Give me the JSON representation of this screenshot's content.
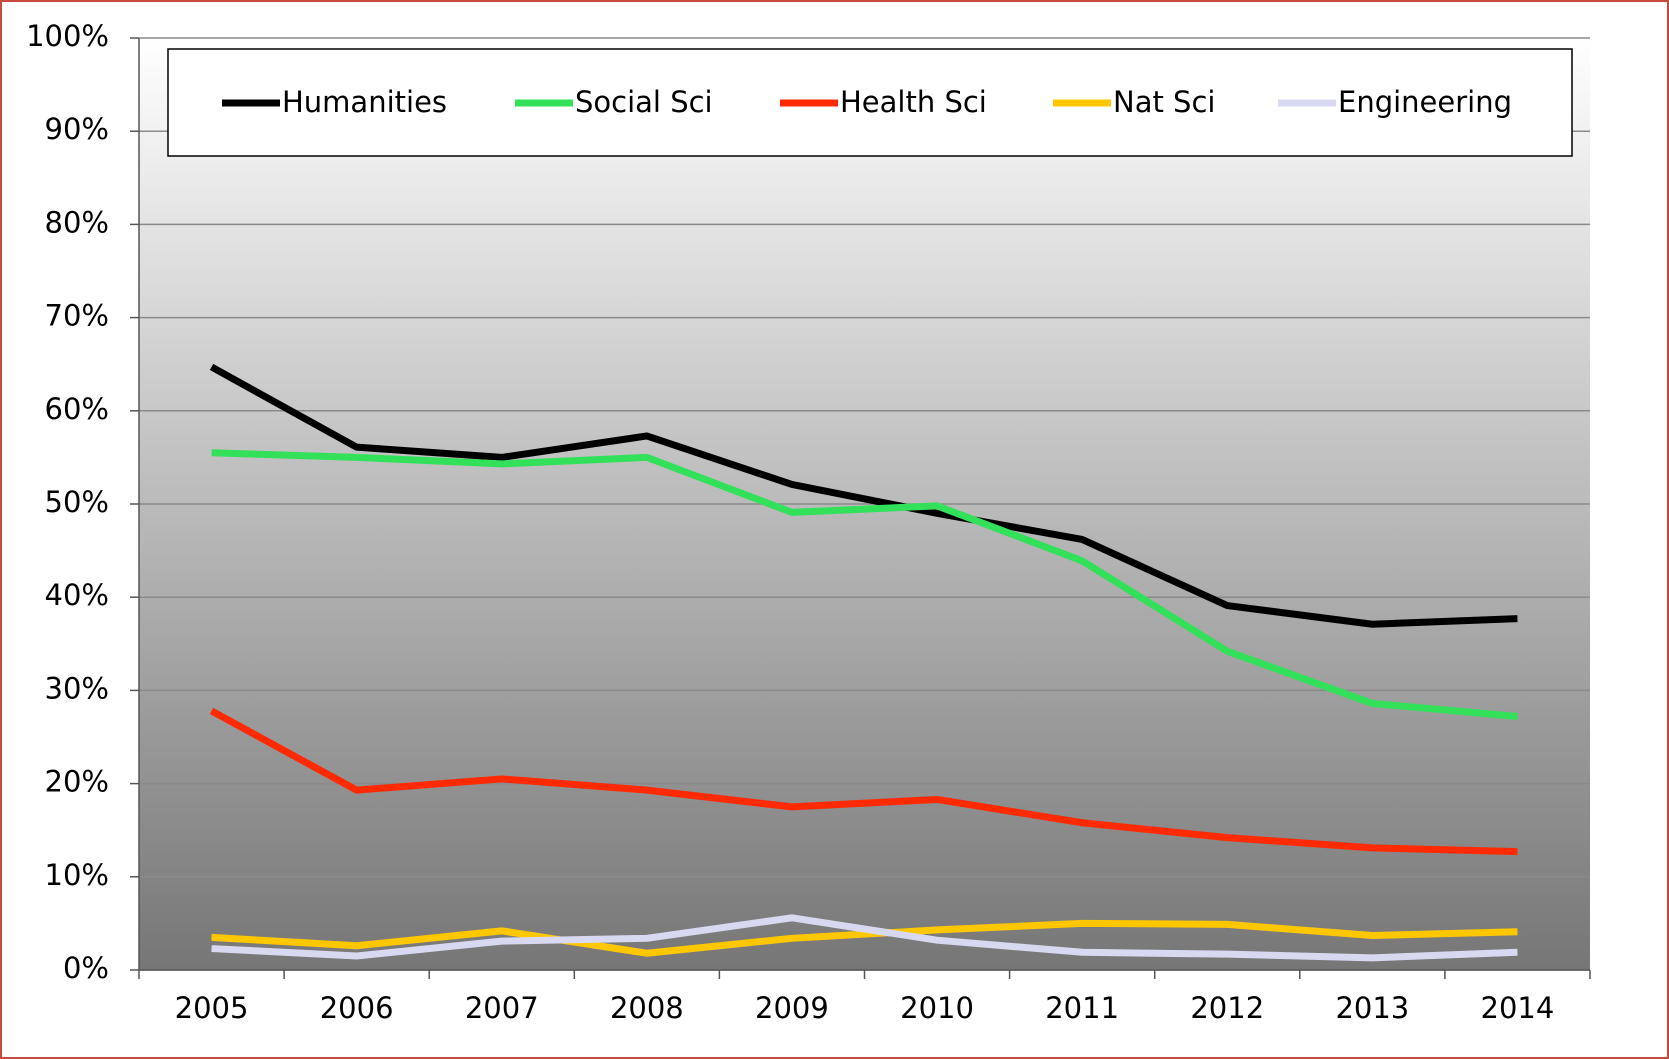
{
  "chart_data": {
    "type": "line",
    "categories": [
      "2005",
      "2006",
      "2007",
      "2008",
      "2009",
      "2010",
      "2011",
      "2012",
      "2013",
      "2014"
    ],
    "series": [
      {
        "name": "Humanities",
        "color": "#000000",
        "values": [
          64.7,
          56.1,
          55.0,
          57.3,
          52.1,
          49.0,
          46.2,
          39.1,
          37.1,
          37.7
        ]
      },
      {
        "name": "Social Sci",
        "color": "#33e05a",
        "values": [
          55.5,
          55.0,
          54.3,
          55.0,
          49.1,
          49.8,
          43.9,
          34.2,
          28.6,
          27.2
        ]
      },
      {
        "name": "Health Sci",
        "color": "#ff2a00",
        "values": [
          27.8,
          19.3,
          20.5,
          19.3,
          17.5,
          18.3,
          15.8,
          14.2,
          13.1,
          12.7
        ]
      },
      {
        "name": "Nat Sci",
        "color": "#ffc700",
        "values": [
          3.5,
          2.6,
          4.2,
          1.8,
          3.4,
          4.3,
          5.0,
          4.9,
          3.7,
          4.1
        ]
      },
      {
        "name": "Engineering",
        "color": "#d8d8f0",
        "values": [
          2.3,
          1.5,
          3.1,
          3.4,
          5.6,
          3.2,
          1.9,
          1.7,
          1.3,
          1.9
        ]
      }
    ],
    "ylim": [
      0,
      100
    ],
    "yticks": [
      {
        "value": 0,
        "label": "0%"
      },
      {
        "value": 10,
        "label": "10%"
      },
      {
        "value": 20,
        "label": "20%"
      },
      {
        "value": 30,
        "label": "30%"
      },
      {
        "value": 40,
        "label": "40%"
      },
      {
        "value": 50,
        "label": "50%"
      },
      {
        "value": 60,
        "label": "60%"
      },
      {
        "value": 70,
        "label": "70%"
      },
      {
        "value": 80,
        "label": "80%"
      },
      {
        "value": 90,
        "label": "90%"
      },
      {
        "value": 100,
        "label": "100%"
      }
    ],
    "grid": true,
    "legend": "top"
  }
}
